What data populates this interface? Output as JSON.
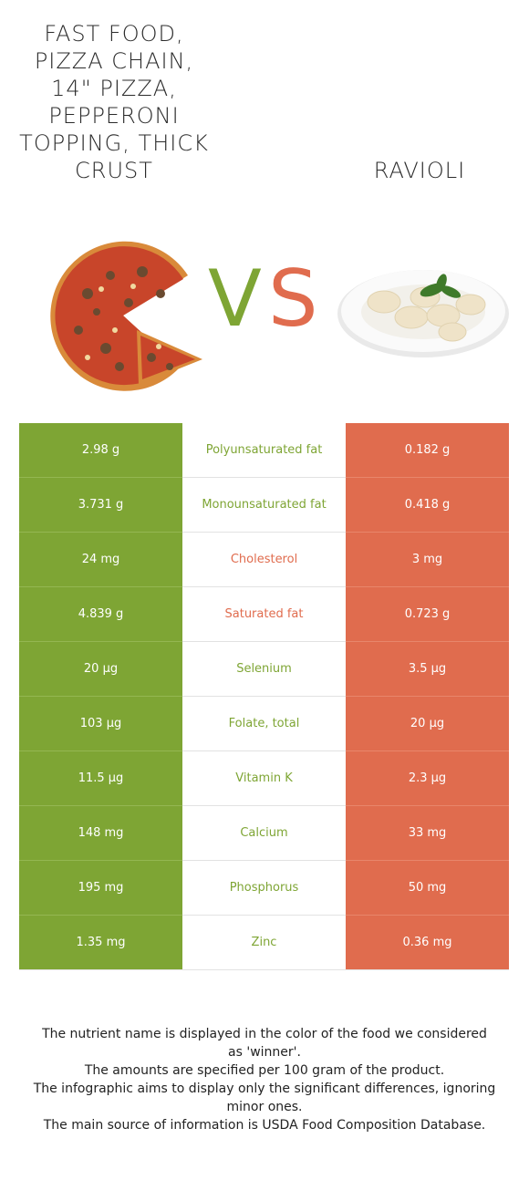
{
  "header": {
    "left_title": "FAST FOOD, PIZZA CHAIN, 14\" PIZZA, PEPPERONI TOPPING, THICK CRUST",
    "vs_v": "V",
    "vs_s": "S",
    "right_title": "RAVIOLI"
  },
  "colors": {
    "left": "#7ea534",
    "right": "#e06c4e"
  },
  "rows": [
    {
      "left": "2.98 g",
      "name": "Polyunsaturated fat",
      "right": "0.182 g",
      "winner": "left"
    },
    {
      "left": "3.731 g",
      "name": "Monounsaturated fat",
      "right": "0.418 g",
      "winner": "left"
    },
    {
      "left": "24 mg",
      "name": "Cholesterol",
      "right": "3 mg",
      "winner": "right"
    },
    {
      "left": "4.839 g",
      "name": "Saturated fat",
      "right": "0.723 g",
      "winner": "right"
    },
    {
      "left": "20 µg",
      "name": "Selenium",
      "right": "3.5 µg",
      "winner": "left"
    },
    {
      "left": "103 µg",
      "name": "Folate, total",
      "right": "20 µg",
      "winner": "left"
    },
    {
      "left": "11.5 µg",
      "name": "Vitamin K",
      "right": "2.3 µg",
      "winner": "left"
    },
    {
      "left": "148 mg",
      "name": "Calcium",
      "right": "33 mg",
      "winner": "left"
    },
    {
      "left": "195 mg",
      "name": "Phosphorus",
      "right": "50 mg",
      "winner": "left"
    },
    {
      "left": "1.35 mg",
      "name": "Zinc",
      "right": "0.36 mg",
      "winner": "left"
    }
  ],
  "footer": {
    "line1": "The nutrient name is displayed in the color of the food we considered as 'winner'.",
    "line2": "The amounts are specified per 100 gram of the product.",
    "line3": "The infographic aims to display only the significant differences, ignoring minor ones.",
    "line4": "The main source of information is USDA Food Composition Database."
  }
}
